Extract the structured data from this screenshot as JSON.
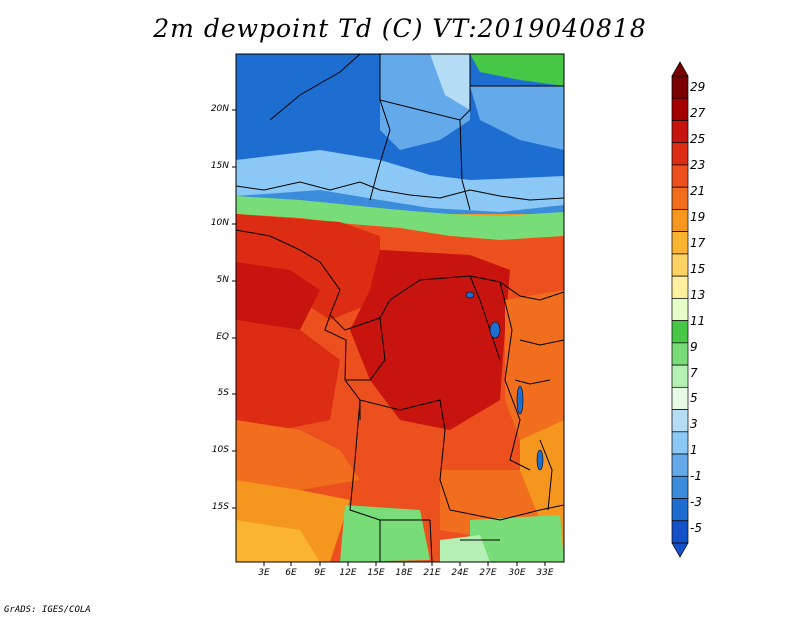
{
  "title": "2m dewpoint Td (C) VT:2019040818",
  "credit": "GrADS: IGES/COLA",
  "map": {
    "y_labels": [
      "20N",
      "15N",
      "10N",
      "5N",
      "EQ",
      "5S",
      "10S",
      "15S"
    ],
    "x_labels": [
      "3E",
      "6E",
      "9E",
      "12E",
      "15E",
      "18E",
      "21E",
      "24E",
      "27E",
      "30E",
      "33E"
    ]
  },
  "colorbar": {
    "labels": [
      "29",
      "27",
      "25",
      "23",
      "21",
      "19",
      "17",
      "15",
      "13",
      "11",
      "9",
      "7",
      "5",
      "3",
      "1",
      "-1",
      "-3",
      "-5"
    ],
    "colors": [
      "#7a0000",
      "#a50000",
      "#c8140f",
      "#dc2d14",
      "#eb501e",
      "#f06e1e",
      "#f5961e",
      "#fab432",
      "#fcd264",
      "#fff0a0",
      "#e6ffc8",
      "#46c846",
      "#78dc78",
      "#b4f0b4",
      "#e6fae6",
      "#b4dcf5",
      "#8cc8f5",
      "#64aaeb",
      "#3c8cdc",
      "#1e6ed2",
      "#1450c8"
    ]
  }
}
